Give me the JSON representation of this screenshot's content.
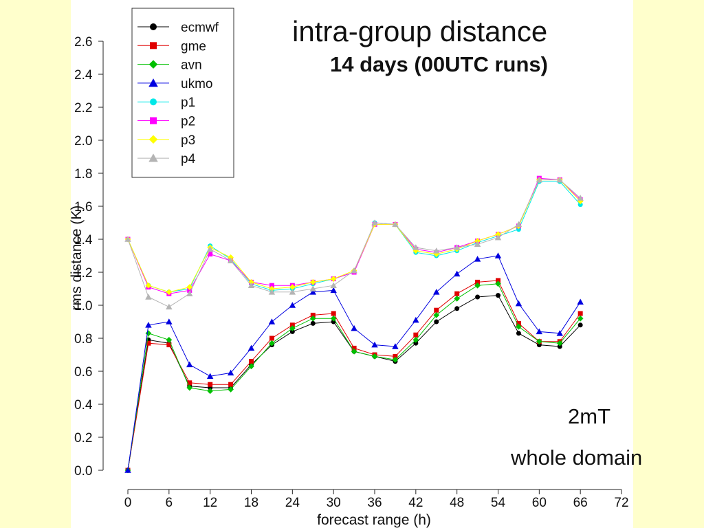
{
  "chart_data": {
    "type": "line",
    "title": "intra-group distance",
    "subtitle": "14 days (00UTC runs)",
    "xlabel": "forecast range (h)",
    "ylabel": "rms distance (K)",
    "xlim": [
      0,
      72
    ],
    "ylim": [
      0,
      2.6
    ],
    "xticks": [
      0,
      6,
      12,
      18,
      24,
      30,
      36,
      42,
      48,
      54,
      60,
      66,
      72
    ],
    "yticks": [
      "0.0",
      "0.2",
      "0.4",
      "0.6",
      "0.8",
      "1.0",
      "1.2",
      "1.4",
      "1.6",
      "1.8",
      "2.0",
      "2.2",
      "2.4",
      "2.6"
    ],
    "grid": false,
    "legend": "top-left",
    "annotations": [
      "2mT",
      "whole domain"
    ],
    "x": [
      0,
      3,
      6,
      9,
      12,
      15,
      18,
      21,
      24,
      27,
      30,
      33,
      36,
      39,
      42,
      45,
      48,
      51,
      54,
      57,
      60,
      63,
      66
    ],
    "series": [
      {
        "name": "ecmwf",
        "color": "#000000",
        "marker": "circle",
        "values": [
          0.0,
          0.79,
          0.77,
          0.51,
          0.5,
          0.5,
          0.64,
          0.76,
          0.84,
          0.89,
          0.9,
          0.72,
          0.69,
          0.66,
          0.77,
          0.9,
          0.98,
          1.05,
          1.06,
          0.83,
          0.76,
          0.75,
          0.88
        ]
      },
      {
        "name": "gme",
        "color": "#e00000",
        "marker": "square",
        "values": [
          0.0,
          0.77,
          0.76,
          0.53,
          0.52,
          0.52,
          0.66,
          0.8,
          0.88,
          0.94,
          0.95,
          0.74,
          0.7,
          0.69,
          0.82,
          0.97,
          1.07,
          1.14,
          1.15,
          0.89,
          0.78,
          0.78,
          0.95
        ]
      },
      {
        "name": "avn",
        "color": "#00c000",
        "marker": "diamond",
        "values": [
          0.0,
          0.83,
          0.79,
          0.5,
          0.48,
          0.49,
          0.63,
          0.77,
          0.86,
          0.92,
          0.92,
          0.72,
          0.69,
          0.67,
          0.79,
          0.94,
          1.04,
          1.12,
          1.13,
          0.87,
          0.78,
          0.77,
          0.92
        ]
      },
      {
        "name": "ukmo",
        "color": "#0000e0",
        "marker": "triangle",
        "values": [
          0.0,
          0.88,
          0.9,
          0.64,
          0.57,
          0.59,
          0.74,
          0.9,
          1.0,
          1.08,
          1.09,
          0.86,
          0.76,
          0.75,
          0.91,
          1.08,
          1.19,
          1.28,
          1.3,
          1.01,
          0.84,
          0.83,
          1.02
        ]
      },
      {
        "name": "p1",
        "color": "#00e8e8",
        "marker": "circle",
        "values": [
          1.4,
          1.12,
          1.08,
          1.1,
          1.36,
          1.28,
          1.13,
          1.09,
          1.1,
          1.13,
          1.16,
          1.2,
          1.5,
          1.49,
          1.32,
          1.3,
          1.33,
          1.38,
          1.42,
          1.46,
          1.75,
          1.75,
          1.61
        ]
      },
      {
        "name": "p2",
        "color": "#ff00ff",
        "marker": "square",
        "values": [
          1.4,
          1.11,
          1.07,
          1.09,
          1.31,
          1.27,
          1.14,
          1.12,
          1.12,
          1.14,
          1.16,
          1.2,
          1.49,
          1.49,
          1.34,
          1.32,
          1.35,
          1.39,
          1.43,
          1.48,
          1.77,
          1.76,
          1.64
        ]
      },
      {
        "name": "p3",
        "color": "#ffff00",
        "marker": "diamond",
        "values": [
          1.4,
          1.12,
          1.08,
          1.11,
          1.35,
          1.29,
          1.14,
          1.1,
          1.11,
          1.14,
          1.16,
          1.21,
          1.49,
          1.49,
          1.33,
          1.31,
          1.34,
          1.39,
          1.43,
          1.48,
          1.76,
          1.76,
          1.63
        ]
      },
      {
        "name": "p4",
        "color": "#b4b4b4",
        "marker": "triangle",
        "values": [
          1.4,
          1.05,
          0.99,
          1.07,
          1.34,
          1.27,
          1.12,
          1.08,
          1.08,
          1.1,
          1.12,
          1.21,
          1.5,
          1.49,
          1.35,
          1.33,
          1.35,
          1.37,
          1.41,
          1.49,
          1.76,
          1.76,
          1.65
        ]
      }
    ]
  }
}
